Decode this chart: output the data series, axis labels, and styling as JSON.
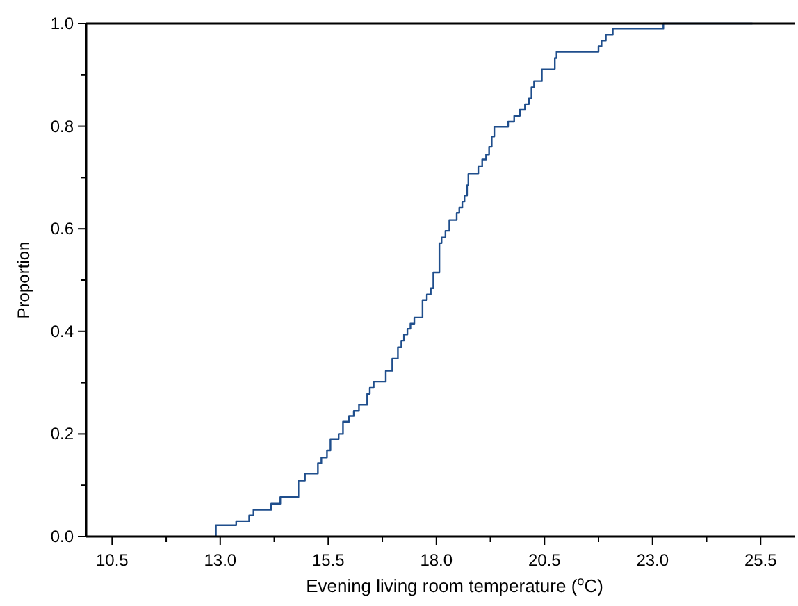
{
  "chart_data": {
    "type": "step",
    "xlabel": "Evening living room temperature ($^{o}$C)",
    "ylabel": "Proportion",
    "xlim": [
      9.9,
      26.3
    ],
    "ylim": [
      0,
      1
    ],
    "xticks": [
      {
        "value": 10.5,
        "label": "10.5"
      },
      {
        "value": 11.75,
        "label": null
      },
      {
        "value": 13.0,
        "label": "13.0"
      },
      {
        "value": 14.25,
        "label": null
      },
      {
        "value": 15.5,
        "label": "15.5"
      },
      {
        "value": 16.75,
        "label": null
      },
      {
        "value": 18.0,
        "label": "18.0"
      },
      {
        "value": 19.25,
        "label": null
      },
      {
        "value": 20.5,
        "label": "20.5"
      },
      {
        "value": 21.75,
        "label": null
      },
      {
        "value": 23.0,
        "label": "23.0"
      },
      {
        "value": 24.25,
        "label": null
      },
      {
        "value": 25.5,
        "label": "25.5"
      }
    ],
    "yticks": [
      {
        "value": 0,
        "label": "0.0"
      },
      {
        "value": 0.1,
        "label": null
      },
      {
        "value": 0.2,
        "label": "0.2"
      },
      {
        "value": 0.3,
        "label": null
      },
      {
        "value": 0.4,
        "label": "0.4"
      },
      {
        "value": 0.5,
        "label": null
      },
      {
        "value": 0.6,
        "label": "0.6"
      },
      {
        "value": 0.7,
        "label": null
      },
      {
        "value": 0.8,
        "label": "0.8"
      },
      {
        "value": 0.9,
        "label": null
      },
      {
        "value": 1.0,
        "label": "1.0"
      }
    ],
    "grid": false,
    "series": [
      {
        "color": "#1f4e8c",
        "x": [
          12.9,
          12.9,
          13.37,
          13.67,
          13.77,
          14.18,
          14.39,
          14.81,
          14.96,
          15.26,
          15.34,
          15.47,
          15.55,
          15.74,
          15.84,
          15.98,
          16.09,
          16.21,
          16.4,
          16.46,
          16.55,
          16.83,
          16.98,
          17.11,
          17.19,
          17.25,
          17.33,
          17.4,
          17.49,
          17.68,
          17.78,
          17.87,
          17.93,
          18.07,
          18.12,
          18.21,
          18.3,
          18.47,
          18.53,
          18.6,
          18.65,
          18.71,
          18.74,
          18.97,
          19.06,
          19.15,
          19.22,
          19.28,
          19.34,
          19.66,
          19.8,
          19.93,
          20.05,
          20.14,
          20.2,
          20.26,
          20.44,
          20.74,
          20.78,
          21.75,
          21.82,
          21.92,
          22.08,
          23.25,
          25.31
        ],
        "values": [
          0,
          0.022,
          0.03,
          0.041,
          0.052,
          0.064,
          0.077,
          0.109,
          0.123,
          0.143,
          0.154,
          0.168,
          0.19,
          0.2,
          0.224,
          0.235,
          0.245,
          0.257,
          0.278,
          0.29,
          0.302,
          0.323,
          0.347,
          0.369,
          0.382,
          0.394,
          0.405,
          0.415,
          0.427,
          0.461,
          0.472,
          0.484,
          0.515,
          0.572,
          0.583,
          0.596,
          0.617,
          0.631,
          0.641,
          0.653,
          0.665,
          0.685,
          0.707,
          0.721,
          0.735,
          0.745,
          0.76,
          0.78,
          0.799,
          0.809,
          0.82,
          0.832,
          0.843,
          0.854,
          0.876,
          0.888,
          0.911,
          0.933,
          0.945,
          0.956,
          0.967,
          0.978,
          0.99,
          1.0,
          1.0
        ]
      }
    ]
  }
}
